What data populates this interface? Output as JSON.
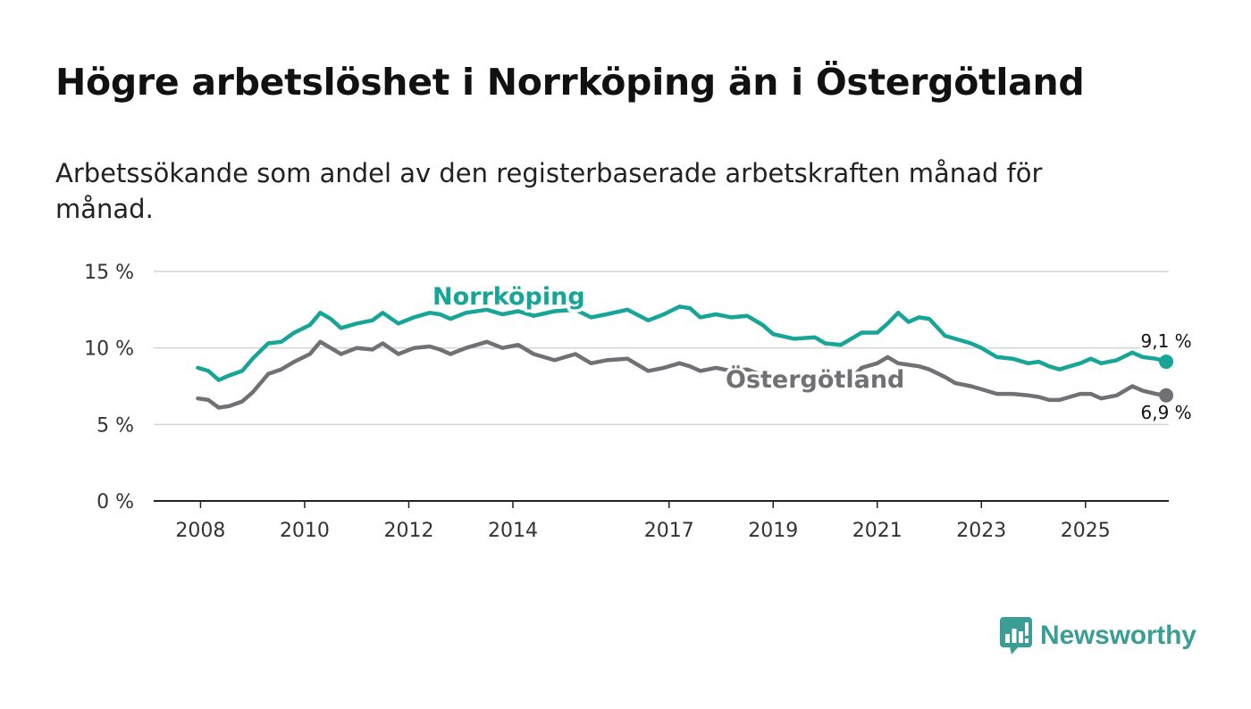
{
  "title": "Högre arbetslöshet i Norrköping än i Östergötland",
  "subtitle": "Arbetssökande som andel av den registerbaserade arbetskraften månad för månad.",
  "brand": {
    "name": "Newsworthy",
    "color": "#3a9e96",
    "icon": "bar-chart-speech-bubble-icon"
  },
  "chart_data": {
    "type": "line",
    "title": "Högre arbetslöshet i Norrköping än i Östergötland",
    "ylabel": "",
    "xlabel": "",
    "ylim": [
      0,
      15
    ],
    "xlim": [
      2007.1,
      2026.6
    ],
    "yticks": [
      {
        "value": 0,
        "label": "0 %"
      },
      {
        "value": 5,
        "label": "5 %"
      },
      {
        "value": 10,
        "label": "10 %"
      },
      {
        "value": 15,
        "label": "15 %"
      }
    ],
    "xticks": [
      {
        "value": 2008,
        "label": "2008"
      },
      {
        "value": 2010,
        "label": "2010"
      },
      {
        "value": 2012,
        "label": "2012"
      },
      {
        "value": 2014,
        "label": "2014"
      },
      {
        "value": 2017,
        "label": "2017"
      },
      {
        "value": 2019,
        "label": "2019"
      },
      {
        "value": 2021,
        "label": "2021"
      },
      {
        "value": 2023,
        "label": "2023"
      },
      {
        "value": 2025,
        "label": "2025"
      }
    ],
    "grid": true,
    "series": [
      {
        "name": "Norrköping",
        "color": "#16a596",
        "end_label": "9,1 %",
        "points": [
          [
            2007.95,
            8.7
          ],
          [
            2008.15,
            8.5
          ],
          [
            2008.35,
            7.9
          ],
          [
            2008.55,
            8.2
          ],
          [
            2008.8,
            8.5
          ],
          [
            2009.0,
            9.3
          ],
          [
            2009.3,
            10.3
          ],
          [
            2009.55,
            10.4
          ],
          [
            2009.8,
            11.0
          ],
          [
            2010.1,
            11.5
          ],
          [
            2010.3,
            12.3
          ],
          [
            2010.5,
            11.9
          ],
          [
            2010.7,
            11.3
          ],
          [
            2011.0,
            11.6
          ],
          [
            2011.3,
            11.8
          ],
          [
            2011.5,
            12.3
          ],
          [
            2011.8,
            11.6
          ],
          [
            2012.1,
            12.0
          ],
          [
            2012.4,
            12.3
          ],
          [
            2012.6,
            12.2
          ],
          [
            2012.8,
            11.9
          ],
          [
            2013.1,
            12.3
          ],
          [
            2013.5,
            12.5
          ],
          [
            2013.8,
            12.2
          ],
          [
            2014.1,
            12.4
          ],
          [
            2014.4,
            12.1
          ],
          [
            2014.8,
            12.4
          ],
          [
            2015.2,
            12.5
          ],
          [
            2015.5,
            12.0
          ],
          [
            2015.8,
            12.2
          ],
          [
            2016.2,
            12.5
          ],
          [
            2016.6,
            11.8
          ],
          [
            2016.9,
            12.2
          ],
          [
            2017.2,
            12.7
          ],
          [
            2017.4,
            12.6
          ],
          [
            2017.6,
            12.0
          ],
          [
            2017.9,
            12.2
          ],
          [
            2018.2,
            12.0
          ],
          [
            2018.5,
            12.1
          ],
          [
            2018.8,
            11.5
          ],
          [
            2019.0,
            10.9
          ],
          [
            2019.4,
            10.6
          ],
          [
            2019.8,
            10.7
          ],
          [
            2020.0,
            10.3
          ],
          [
            2020.3,
            10.2
          ],
          [
            2020.5,
            10.6
          ],
          [
            2020.7,
            11.0
          ],
          [
            2021.0,
            11.0
          ],
          [
            2021.2,
            11.6
          ],
          [
            2021.4,
            12.3
          ],
          [
            2021.6,
            11.7
          ],
          [
            2021.8,
            12.0
          ],
          [
            2022.0,
            11.9
          ],
          [
            2022.3,
            10.8
          ],
          [
            2022.5,
            10.6
          ],
          [
            2022.8,
            10.3
          ],
          [
            2023.0,
            10.0
          ],
          [
            2023.3,
            9.4
          ],
          [
            2023.6,
            9.3
          ],
          [
            2023.9,
            9.0
          ],
          [
            2024.1,
            9.1
          ],
          [
            2024.3,
            8.8
          ],
          [
            2024.5,
            8.6
          ],
          [
            2024.7,
            8.8
          ],
          [
            2024.9,
            9.0
          ],
          [
            2025.1,
            9.3
          ],
          [
            2025.3,
            9.0
          ],
          [
            2025.6,
            9.2
          ],
          [
            2025.9,
            9.7
          ],
          [
            2026.1,
            9.4
          ],
          [
            2026.35,
            9.3
          ],
          [
            2026.55,
            9.1
          ]
        ]
      },
      {
        "name": "Östergötland",
        "color": "#717075",
        "end_label": "6,9 %",
        "points": [
          [
            2007.95,
            6.7
          ],
          [
            2008.15,
            6.6
          ],
          [
            2008.35,
            6.1
          ],
          [
            2008.55,
            6.2
          ],
          [
            2008.8,
            6.5
          ],
          [
            2009.0,
            7.1
          ],
          [
            2009.3,
            8.3
          ],
          [
            2009.55,
            8.6
          ],
          [
            2009.8,
            9.1
          ],
          [
            2010.1,
            9.6
          ],
          [
            2010.3,
            10.4
          ],
          [
            2010.5,
            10.0
          ],
          [
            2010.7,
            9.6
          ],
          [
            2011.0,
            10.0
          ],
          [
            2011.3,
            9.9
          ],
          [
            2011.5,
            10.3
          ],
          [
            2011.8,
            9.6
          ],
          [
            2012.1,
            10.0
          ],
          [
            2012.4,
            10.1
          ],
          [
            2012.6,
            9.9
          ],
          [
            2012.8,
            9.6
          ],
          [
            2013.1,
            10.0
          ],
          [
            2013.5,
            10.4
          ],
          [
            2013.8,
            10.0
          ],
          [
            2014.1,
            10.2
          ],
          [
            2014.4,
            9.6
          ],
          [
            2014.8,
            9.2
          ],
          [
            2015.2,
            9.6
          ],
          [
            2015.5,
            9.0
          ],
          [
            2015.8,
            9.2
          ],
          [
            2016.2,
            9.3
          ],
          [
            2016.6,
            8.5
          ],
          [
            2016.9,
            8.7
          ],
          [
            2017.2,
            9.0
          ],
          [
            2017.4,
            8.8
          ],
          [
            2017.6,
            8.5
          ],
          [
            2017.9,
            8.7
          ],
          [
            2018.2,
            8.5
          ],
          [
            2018.5,
            8.6
          ],
          [
            2018.8,
            8.2
          ],
          [
            2019.0,
            8.0
          ],
          [
            2019.4,
            7.9
          ],
          [
            2019.8,
            8.0
          ],
          [
            2020.0,
            7.6
          ],
          [
            2020.3,
            7.5
          ],
          [
            2020.5,
            8.0
          ],
          [
            2020.7,
            8.7
          ],
          [
            2021.0,
            9.0
          ],
          [
            2021.2,
            9.4
          ],
          [
            2021.4,
            9.0
          ],
          [
            2021.6,
            8.9
          ],
          [
            2021.8,
            8.8
          ],
          [
            2022.0,
            8.6
          ],
          [
            2022.3,
            8.1
          ],
          [
            2022.5,
            7.7
          ],
          [
            2022.8,
            7.5
          ],
          [
            2023.0,
            7.3
          ],
          [
            2023.3,
            7.0
          ],
          [
            2023.6,
            7.0
          ],
          [
            2023.9,
            6.9
          ],
          [
            2024.1,
            6.8
          ],
          [
            2024.3,
            6.6
          ],
          [
            2024.5,
            6.6
          ],
          [
            2024.7,
            6.8
          ],
          [
            2024.9,
            7.0
          ],
          [
            2025.1,
            7.0
          ],
          [
            2025.3,
            6.7
          ],
          [
            2025.6,
            6.9
          ],
          [
            2025.9,
            7.5
          ],
          [
            2026.1,
            7.2
          ],
          [
            2026.35,
            7.0
          ],
          [
            2026.55,
            6.9
          ]
        ]
      }
    ]
  }
}
